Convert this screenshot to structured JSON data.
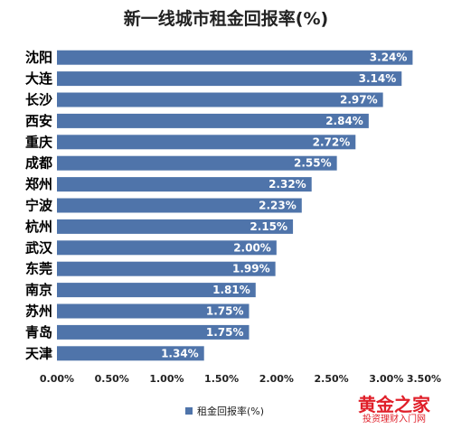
{
  "chart_data": {
    "type": "bar",
    "orientation": "horizontal",
    "title": "新一线城市租金回报率(%)",
    "categories": [
      "沈阳",
      "大连",
      "长沙",
      "西安",
      "重庆",
      "成都",
      "郑州",
      "宁波",
      "杭州",
      "武汉",
      "东莞",
      "南京",
      "苏州",
      "青岛",
      "天津"
    ],
    "series": [
      {
        "name": "租金回报率(%)",
        "values": [
          3.24,
          3.14,
          2.97,
          2.84,
          2.72,
          2.55,
          2.32,
          2.23,
          2.15,
          2.0,
          1.99,
          1.81,
          1.75,
          1.75,
          1.34
        ],
        "labels": [
          "3.24%",
          "3.14%",
          "2.97%",
          "2.84%",
          "2.72%",
          "2.55%",
          "2.32%",
          "2.23%",
          "2.15%",
          "2.00%",
          "1.99%",
          "1.81%",
          "1.75%",
          "1.75%",
          "1.34%"
        ],
        "color": "#4f74aa"
      }
    ],
    "xlim": [
      0,
      3.5
    ],
    "xticks": [
      0,
      0.5,
      1,
      1.5,
      2,
      2.5,
      3,
      3.5
    ],
    "xtick_labels": [
      "0.00%",
      "0.50%",
      "1.00%",
      "1.50%",
      "2.00%",
      "2.50%",
      "3.00%",
      "3.50%"
    ],
    "legend_position": "bottom-center",
    "grid": false
  },
  "watermark": {
    "main": "黄金之家",
    "sub": "投资理财入门网"
  }
}
